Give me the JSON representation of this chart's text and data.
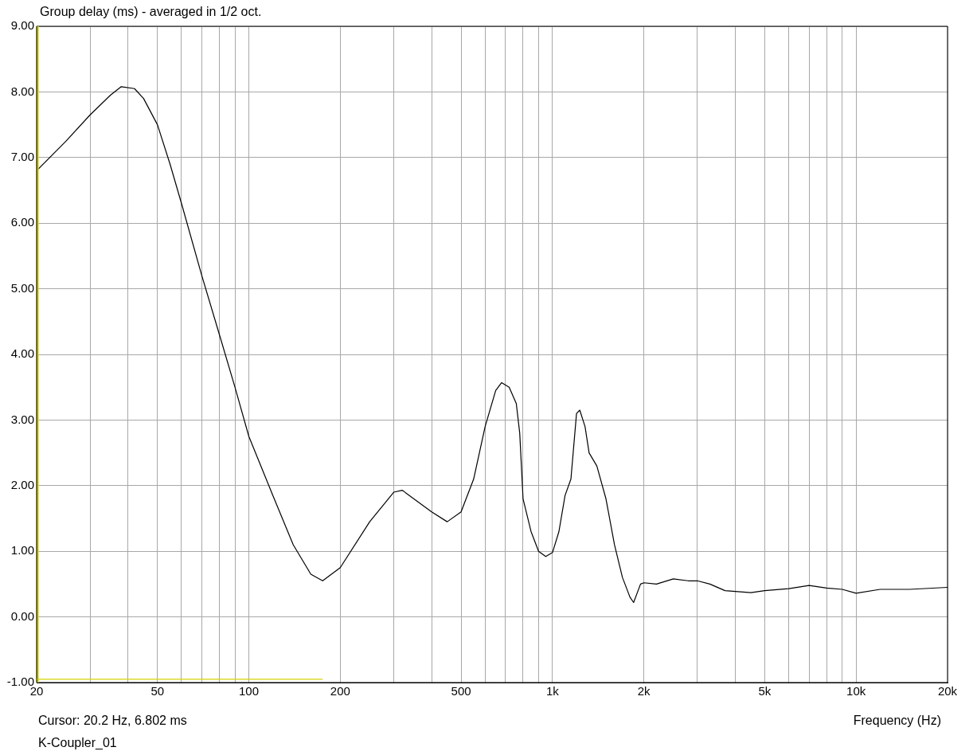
{
  "chart_data": {
    "type": "line",
    "title": "Group delay (ms) - averaged in 1/2 oct.",
    "xlabel": "Frequency (Hz)",
    "annotations": [
      "Cursor: 20.2 Hz, 6.802 ms",
      "K-Coupler_01"
    ],
    "log": "x",
    "grid": true,
    "marker": "none",
    "line_style": "solid",
    "xlim": [
      20,
      20000
    ],
    "ylim": [
      -1,
      9
    ],
    "xticks": [
      20,
      {
        "value": 30,
        "label": null
      },
      {
        "value": 40,
        "label": null
      },
      50,
      {
        "value": 60,
        "label": null
      },
      {
        "value": 70,
        "label": null
      },
      {
        "value": 80,
        "label": null
      },
      {
        "value": 90,
        "label": null
      },
      100,
      200,
      {
        "value": 300,
        "label": null
      },
      {
        "value": 400,
        "label": null
      },
      500,
      {
        "value": 600,
        "label": null
      },
      {
        "value": 700,
        "label": null
      },
      {
        "value": 800,
        "label": null
      },
      {
        "value": 900,
        "label": null
      },
      {
        "value": 1000,
        "label": "1k"
      },
      {
        "value": 2000,
        "label": "2k"
      },
      {
        "value": 3000,
        "label": null
      },
      {
        "value": 4000,
        "label": null
      },
      {
        "value": 5000,
        "label": "5k"
      },
      {
        "value": 6000,
        "label": null
      },
      {
        "value": 7000,
        "label": null
      },
      {
        "value": 8000,
        "label": null
      },
      {
        "value": 9000,
        "label": null
      },
      {
        "value": 10000,
        "label": "10k"
      },
      {
        "value": 20000,
        "label": "20k"
      }
    ],
    "yticks": [
      {
        "value": -1,
        "label": "-1.00"
      },
      {
        "value": 0,
        "label": "0.00"
      },
      {
        "value": 1,
        "label": "1.00"
      },
      {
        "value": 2,
        "label": "2.00"
      },
      {
        "value": 3,
        "label": "3.00"
      },
      {
        "value": 4,
        "label": "4.00"
      },
      {
        "value": 5,
        "label": "5.00"
      },
      {
        "value": 6,
        "label": "6.00"
      },
      {
        "value": 7,
        "label": "7.00"
      },
      {
        "value": 8,
        "label": "8.00"
      },
      {
        "value": 9,
        "label": "9.00"
      }
    ],
    "ref_lines": [
      {
        "axis": "x",
        "value": 20.2,
        "color": "#d4d400"
      }
    ],
    "series": [
      {
        "color": "#000000",
        "x": [
          20,
          25,
          30,
          35,
          38,
          42,
          45,
          50,
          55,
          60,
          70,
          80,
          90,
          100,
          120,
          140,
          160,
          175,
          200,
          250,
          300,
          320,
          400,
          450,
          500,
          550,
          600,
          650,
          680,
          720,
          760,
          780,
          800,
          850,
          900,
          950,
          1000,
          1050,
          1100,
          1150,
          1200,
          1230,
          1280,
          1320,
          1400,
          1500,
          1600,
          1700,
          1800,
          1850,
          1950,
          2000,
          2200,
          2500,
          2800,
          3000,
          3300,
          3700,
          4500,
          5000,
          6000,
          7000,
          8000,
          9000,
          10000,
          12000,
          15000,
          20000
        ],
        "values": [
          6.8,
          7.25,
          7.65,
          7.95,
          8.08,
          8.05,
          7.9,
          7.5,
          6.9,
          6.3,
          5.2,
          4.3,
          3.5,
          2.75,
          1.85,
          1.1,
          0.65,
          0.55,
          0.75,
          1.45,
          1.9,
          1.93,
          1.6,
          1.45,
          1.6,
          2.1,
          2.9,
          3.45,
          3.57,
          3.5,
          3.25,
          2.8,
          1.8,
          1.3,
          1.0,
          0.92,
          0.98,
          1.3,
          1.85,
          2.1,
          3.1,
          3.15,
          2.9,
          2.5,
          2.3,
          1.8,
          1.1,
          0.6,
          0.3,
          0.22,
          0.5,
          0.52,
          0.5,
          0.58,
          0.55,
          0.55,
          0.5,
          0.4,
          0.37,
          0.4,
          0.43,
          0.48,
          0.44,
          0.42,
          0.36,
          0.42,
          0.42,
          0.45
        ]
      },
      {
        "color": "#d4d400",
        "x": [
          20,
          175
        ],
        "values": [
          -0.95,
          -0.95
        ]
      }
    ]
  }
}
